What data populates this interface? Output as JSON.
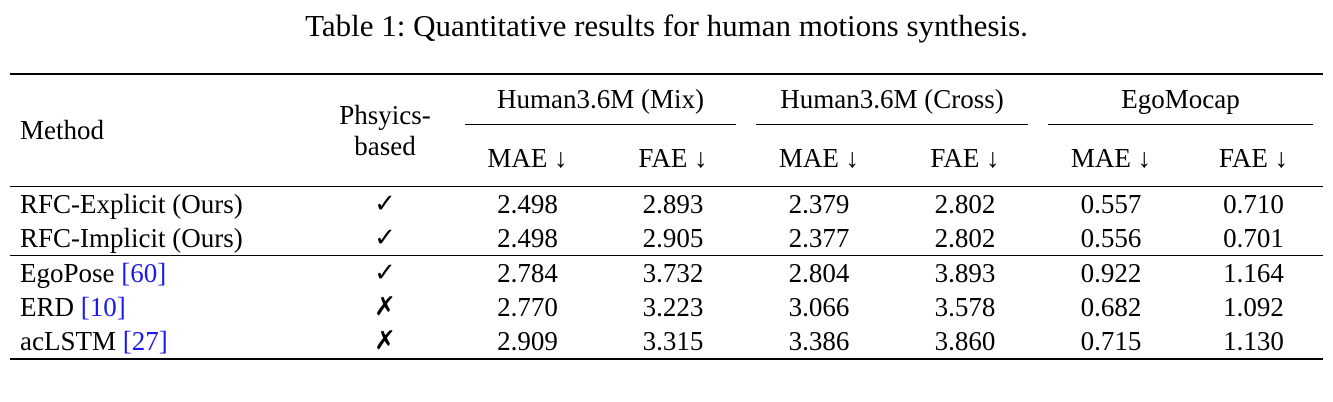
{
  "caption": "Table 1: Quantitative results for human motions synthesis.",
  "header": {
    "method": "Method",
    "physics_line1": "Phsyics-",
    "physics_line2": "based",
    "groups": [
      "Human3.6M (Mix)",
      "Human3.6M (Cross)",
      "EgoMocap"
    ],
    "metrics": [
      "MAE ↓",
      "FAE ↓",
      "MAE ↓",
      "FAE ↓",
      "MAE ↓",
      "FAE ↓"
    ]
  },
  "rows": [
    {
      "name": "RFC-Explicit (Ours)",
      "cite": "",
      "physics": "✓",
      "values": [
        "2.498",
        "2.893",
        "2.379",
        "2.802",
        "0.557",
        "0.710"
      ],
      "bold": [
        true,
        true,
        false,
        true,
        false,
        false
      ]
    },
    {
      "name": "RFC-Implicit (Ours)",
      "cite": "",
      "physics": "✓",
      "values": [
        "2.498",
        "2.905",
        "2.377",
        "2.802",
        "0.556",
        "0.701"
      ],
      "bold": [
        true,
        false,
        true,
        true,
        true,
        true
      ]
    },
    {
      "name": "EgoPose ",
      "cite": "[60]",
      "physics": "✓",
      "values": [
        "2.784",
        "3.732",
        "2.804",
        "3.893",
        "0.922",
        "1.164"
      ],
      "bold": [
        false,
        false,
        false,
        false,
        false,
        false
      ]
    },
    {
      "name": "ERD ",
      "cite": "[10]",
      "physics": "✗",
      "values": [
        "2.770",
        "3.223",
        "3.066",
        "3.578",
        "0.682",
        "1.092"
      ],
      "bold": [
        false,
        false,
        false,
        false,
        false,
        false
      ]
    },
    {
      "name": "acLSTM ",
      "cite": "[27]",
      "physics": "✗",
      "values": [
        "2.909",
        "3.315",
        "3.386",
        "3.860",
        "0.715",
        "1.130"
      ],
      "bold": [
        false,
        false,
        false,
        false,
        false,
        false
      ]
    }
  ]
}
